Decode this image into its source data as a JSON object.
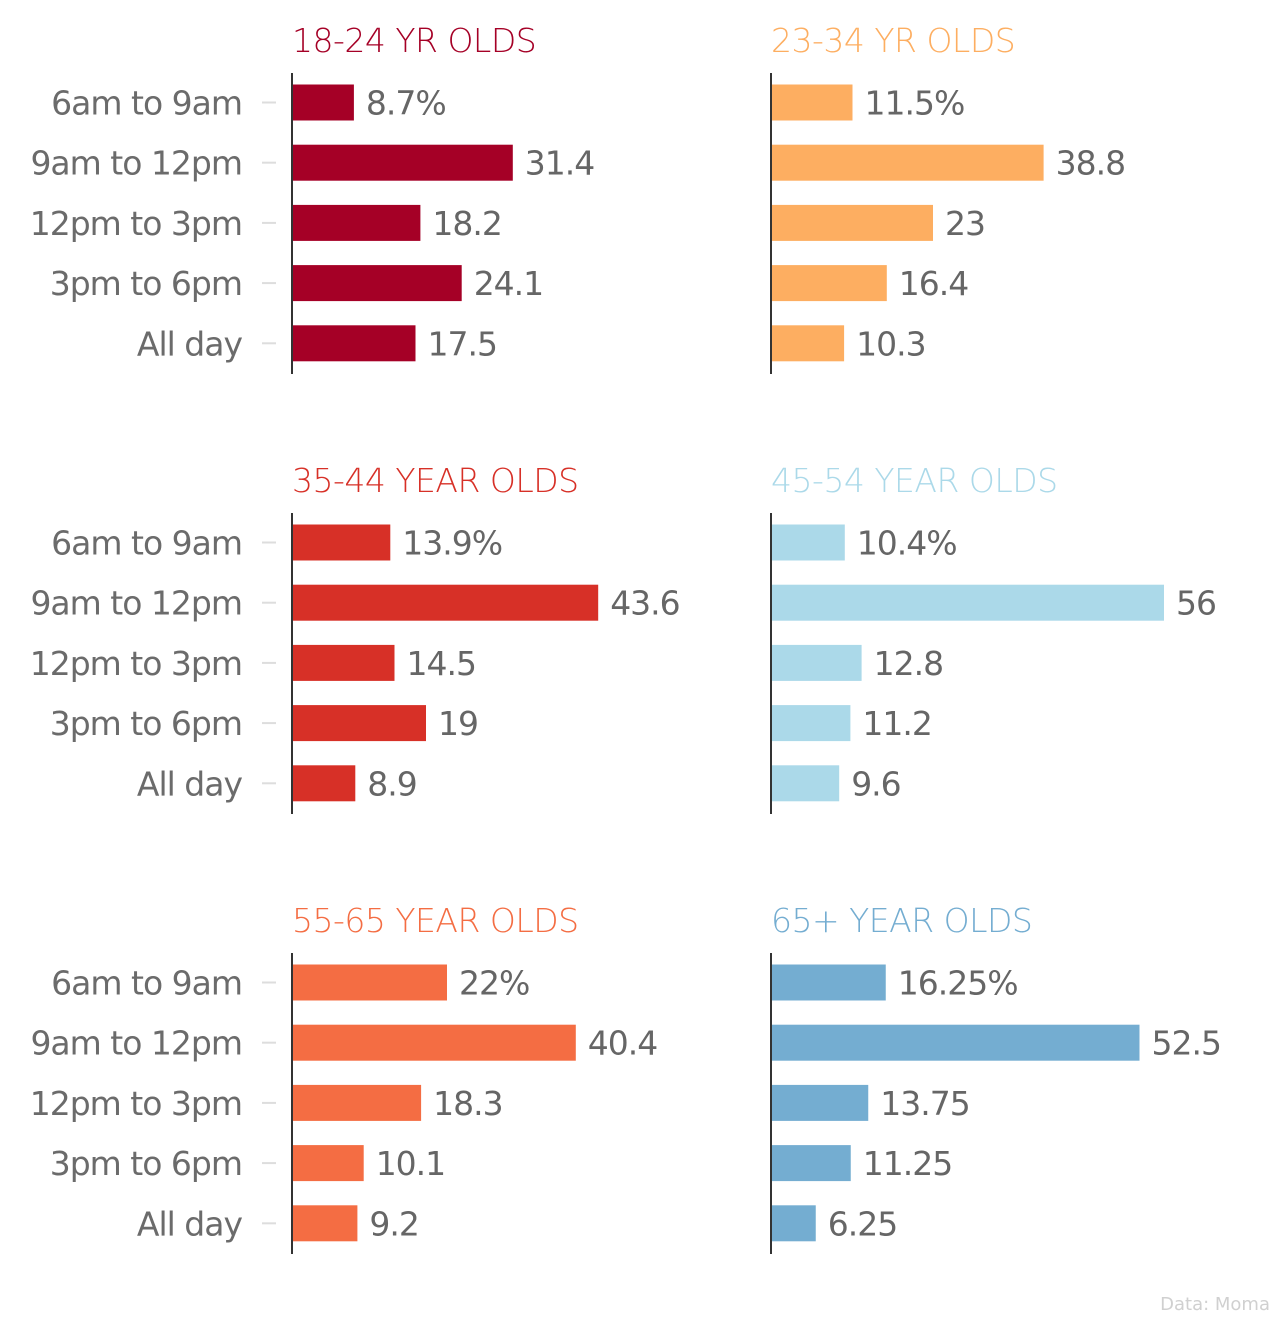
{
  "chart_data": [
    {
      "type": "bar",
      "title": "18-24 YR OLDS",
      "color": "#a50026",
      "categories": [
        "6am to 9am",
        "9am to 12pm",
        "12pm to 3pm",
        "3pm to 6pm",
        "All day"
      ],
      "values": [
        8.7,
        31.4,
        18.2,
        24.1,
        17.5
      ],
      "labels": [
        "8.7%",
        "31.4",
        "18.2",
        "24.1",
        "17.5"
      ]
    },
    {
      "type": "bar",
      "title": "23-34 YR OLDS",
      "color": "#fdae61",
      "categories": [
        "6am to 9am",
        "9am to 12pm",
        "12pm to 3pm",
        "3pm to 6pm",
        "All day"
      ],
      "values": [
        11.5,
        38.8,
        23,
        16.4,
        10.3
      ],
      "labels": [
        "11.5%",
        "38.8",
        "23",
        "16.4",
        "10.3"
      ]
    },
    {
      "type": "bar",
      "title": "35-44 YEAR OLDS",
      "color": "#d73027",
      "categories": [
        "6am to 9am",
        "9am to 12pm",
        "12pm to 3pm",
        "3pm to 6pm",
        "All day"
      ],
      "values": [
        13.9,
        43.6,
        14.5,
        19,
        8.9
      ],
      "labels": [
        "13.9%",
        "43.6",
        "14.5",
        "19",
        "8.9"
      ]
    },
    {
      "type": "bar",
      "title": "45-54 YEAR OLDS",
      "color": "#abd9e9",
      "categories": [
        "6am to 9am",
        "9am to 12pm",
        "12pm to 3pm",
        "3pm to 6pm",
        "All day"
      ],
      "values": [
        10.4,
        56,
        12.8,
        11.2,
        9.6
      ],
      "labels": [
        "10.4%",
        "56",
        "12.8",
        "11.2",
        "9.6"
      ]
    },
    {
      "type": "bar",
      "title": "55-65 YEAR OLDS",
      "color": "#f46d43",
      "categories": [
        "6am to 9am",
        "9am to 12pm",
        "12pm to 3pm",
        "3pm to 6pm",
        "All day"
      ],
      "values": [
        22,
        40.4,
        18.3,
        10.1,
        9.2
      ],
      "labels": [
        "22%",
        "40.4",
        "18.3",
        "10.1",
        "9.2"
      ]
    },
    {
      "type": "bar",
      "title": "65+ YEAR OLDS",
      "color": "#74add1",
      "categories": [
        "6am to 9am",
        "9am to 12pm",
        "12pm to 3pm",
        "3pm to 6pm",
        "All day"
      ],
      "values": [
        16.25,
        52.5,
        13.75,
        11.25,
        6.25
      ],
      "labels": [
        "16.25%",
        "52.5",
        "13.75",
        "11.25",
        "6.25"
      ]
    }
  ],
  "source": "Data: Moma",
  "colors": {
    "axis": "#333333",
    "tick": "#dddddd",
    "text": "#666666"
  }
}
